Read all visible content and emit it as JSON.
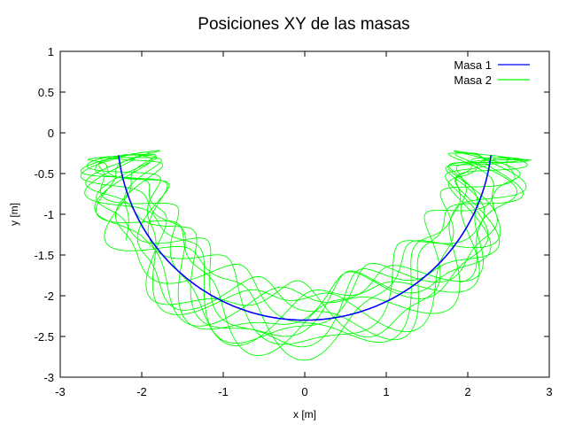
{
  "chart_data": {
    "type": "line",
    "title": "Posiciones XY de las masas",
    "xlabel": "x  [m]",
    "ylabel": "y  [m]",
    "xlim": [
      -3,
      3
    ],
    "ylim": [
      -3,
      1
    ],
    "xticks": [
      -3,
      -2,
      -1,
      0,
      1,
      2,
      3
    ],
    "yticks": [
      -3,
      -2.5,
      -2,
      -1.5,
      -1,
      -0.5,
      0,
      0.5,
      1
    ],
    "grid": false,
    "legend": "top-right",
    "series": [
      {
        "name": "Masa 1",
        "color": "#0000ff",
        "shape": "arc",
        "center": [
          0,
          0
        ],
        "radius": 2.3,
        "x_range": [
          -2.28,
          2.28
        ]
      },
      {
        "name": "Masa 2",
        "color": "#00ff00",
        "shape": "band",
        "center": [
          0,
          0
        ],
        "radius_range": [
          1.78,
          2.8
        ],
        "x_range": [
          -2.8,
          2.8
        ]
      }
    ]
  }
}
